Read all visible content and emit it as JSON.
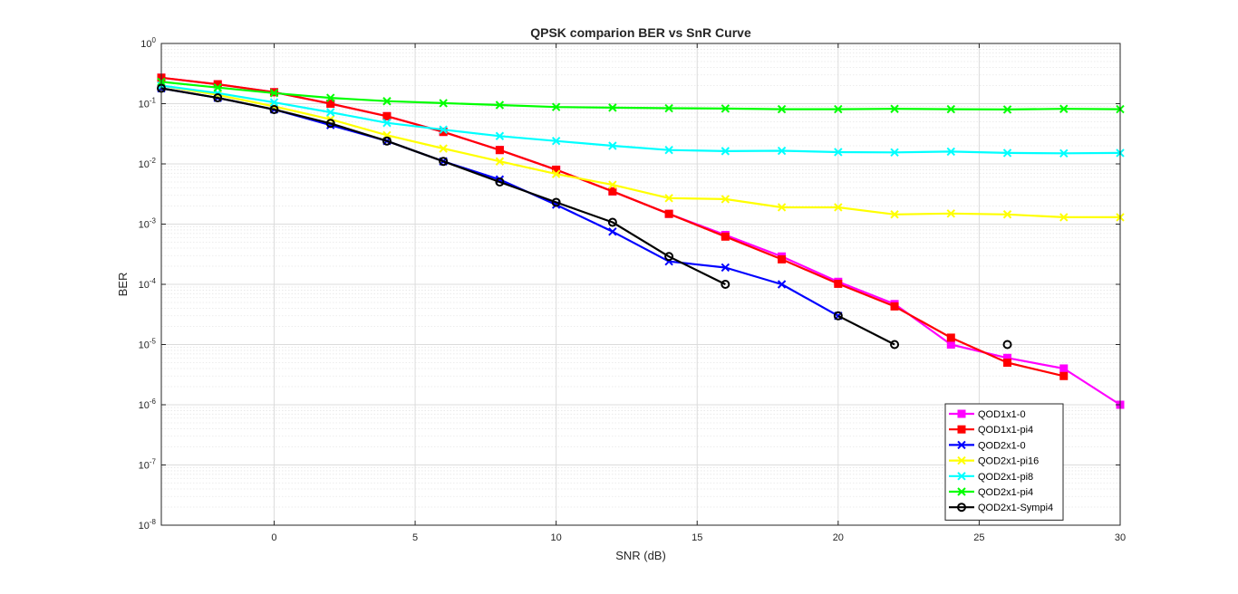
{
  "chart_data": {
    "type": "line",
    "title": "QPSK comparion BER vs SnR Curve",
    "xlabel": "SNR (dB)",
    "ylabel": "BER",
    "xlim": [
      -4,
      30
    ],
    "ylim": [
      1e-08,
      1
    ],
    "yscale": "log",
    "grid": true,
    "minor_grid": true,
    "legend_position": "bottom-right",
    "xticks": [
      0,
      5,
      10,
      15,
      20,
      25,
      30
    ],
    "yticks": [
      -8,
      -7,
      -6,
      -5,
      -4,
      -3,
      -2,
      -1,
      0
    ],
    "series": [
      {
        "name": "QOD1x1-0",
        "color": "#ff00ff",
        "marker": "square",
        "x": [
          -4,
          -2,
          0,
          2,
          4,
          6,
          8,
          10,
          12,
          14,
          16,
          18,
          20,
          22,
          24,
          26,
          28,
          30
        ],
        "y": [
          0.27,
          0.21,
          0.155,
          0.1,
          0.062,
          0.034,
          0.017,
          0.008,
          0.0035,
          0.00148,
          0.00066,
          0.00029,
          0.00011,
          4.7e-05,
          1e-05,
          6e-06,
          4e-06,
          1e-06
        ]
      },
      {
        "name": "QOD1x1-pi4",
        "color": "#ff0000",
        "marker": "square",
        "x": [
          -4,
          -2,
          0,
          2,
          4,
          6,
          8,
          10,
          12,
          14,
          16,
          18,
          20,
          22,
          24,
          26,
          28
        ],
        "y": [
          0.27,
          0.21,
          0.155,
          0.1,
          0.062,
          0.034,
          0.017,
          0.008,
          0.0035,
          0.00148,
          0.00062,
          0.00026,
          0.000102,
          4.3e-05,
          1.3e-05,
          5e-06,
          3e-06
        ]
      },
      {
        "name": "QOD2x1-0",
        "color": "#0000ff",
        "marker": "x",
        "x": [
          -4,
          -2,
          0,
          2,
          4,
          6,
          8,
          10,
          12,
          14,
          16,
          18,
          20
        ],
        "y": [
          0.18,
          0.125,
          0.08,
          0.044,
          0.024,
          0.011,
          0.0055,
          0.0021,
          0.00075,
          0.00024,
          0.00019,
          0.0001,
          3e-05
        ]
      },
      {
        "name": "QOD2x1-pi16",
        "color": "#ffff00",
        "marker": "x",
        "x": [
          -4,
          -2,
          0,
          2,
          4,
          6,
          8,
          10,
          12,
          14,
          16,
          18,
          20,
          22,
          24,
          26,
          28,
          30
        ],
        "y": [
          0.2,
          0.14,
          0.09,
          0.055,
          0.03,
          0.018,
          0.011,
          0.0068,
          0.0045,
          0.0027,
          0.0026,
          0.0019,
          0.0019,
          0.00145,
          0.0015,
          0.00145,
          0.0013,
          0.0013
        ]
      },
      {
        "name": "QOD2x1-pi8",
        "color": "#00ffff",
        "marker": "x",
        "x": [
          -4,
          -2,
          0,
          2,
          4,
          6,
          8,
          10,
          12,
          14,
          16,
          18,
          20,
          22,
          24,
          26,
          28,
          30
        ],
        "y": [
          0.2,
          0.15,
          0.105,
          0.072,
          0.048,
          0.037,
          0.029,
          0.024,
          0.02,
          0.017,
          0.0163,
          0.0165,
          0.0157,
          0.0155,
          0.016,
          0.0152,
          0.015,
          0.0152
        ]
      },
      {
        "name": "QOD2x1-pi4",
        "color": "#00ff00",
        "marker": "x",
        "x": [
          -4,
          -2,
          0,
          2,
          4,
          6,
          8,
          10,
          12,
          14,
          16,
          18,
          20,
          22,
          24,
          26,
          28,
          30
        ],
        "y": [
          0.23,
          0.185,
          0.15,
          0.125,
          0.11,
          0.102,
          0.095,
          0.088,
          0.086,
          0.084,
          0.083,
          0.081,
          0.081,
          0.082,
          0.081,
          0.08,
          0.082,
          0.081
        ]
      },
      {
        "name": "QOD2x1-Sympi4",
        "color": "#000000",
        "marker": "circle",
        "x": [
          -4,
          -2,
          0,
          2,
          4,
          6,
          8,
          10,
          12,
          14,
          16,
          null,
          20,
          22,
          null,
          26
        ],
        "y": [
          0.18,
          0.125,
          0.08,
          0.047,
          0.024,
          0.011,
          0.005,
          0.0023,
          0.00107,
          0.00029,
          0.0001,
          null,
          3e-05,
          1e-05,
          null,
          1e-05
        ]
      }
    ]
  }
}
